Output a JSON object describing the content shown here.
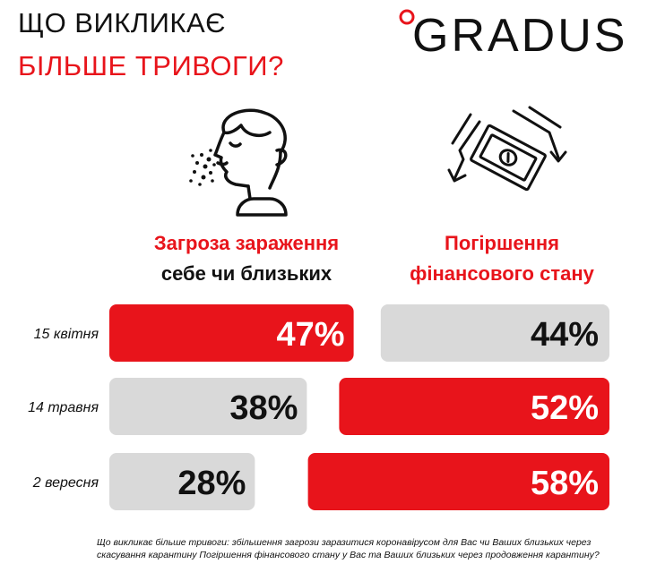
{
  "title": {
    "line1": "ЩО ВИКЛИКАЄ",
    "line2": "БІЛЬШЕ ТРИВОГИ?"
  },
  "logo": {
    "text": "GRADUS"
  },
  "columns": {
    "left": {
      "line1": "Загроза зараження",
      "line2": "себе чи близьких"
    },
    "right": {
      "line1": "Погіршення",
      "line2": "фінансового стану"
    }
  },
  "icons": {
    "left": "sneezing-person-icon",
    "right": "falling-money-icon"
  },
  "colors": {
    "accent": "#e8141b",
    "neutral_bar": "#d9d9d9",
    "text": "#111111"
  },
  "chart_data": {
    "type": "bar",
    "categories": [
      "15 квітня",
      "14 травня",
      "2 вересня"
    ],
    "series": [
      {
        "name": "Загроза зараження себе чи близьких",
        "values": [
          47,
          38,
          28
        ]
      },
      {
        "name": "Погіршення фінансового стану",
        "values": [
          44,
          52,
          58
        ]
      }
    ],
    "value_labels": [
      [
        "47%",
        "38%",
        "28%"
      ],
      [
        "44%",
        "52%",
        "58%"
      ]
    ],
    "highlight": [
      [
        "red",
        "grey",
        "grey"
      ],
      [
        "grey",
        "red",
        "red"
      ]
    ]
  },
  "footnote": "Що викликає більше тривоги: збільшення загрози заразитися коронавірусом для Вас чи Ваших близьких через скасування карантину Погіршення фінансового стану у Вас та Ваших близьких через продовження карантину?"
}
